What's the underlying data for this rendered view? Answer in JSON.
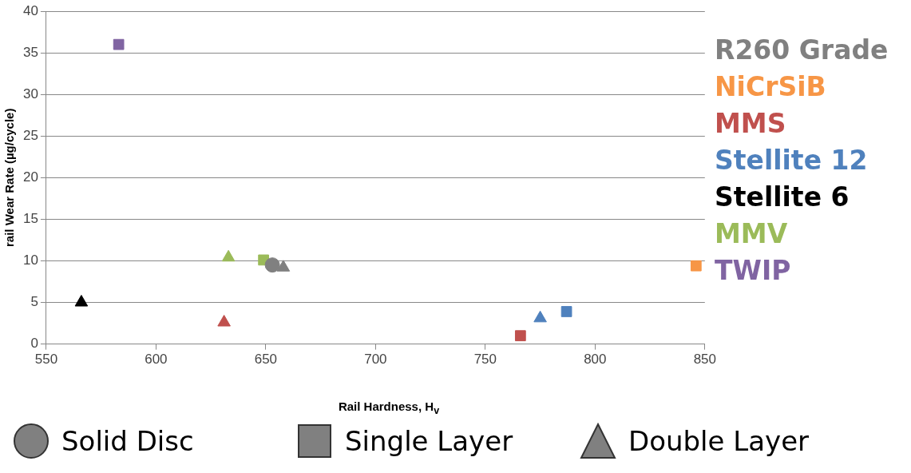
{
  "chart_data": {
    "type": "scatter",
    "xlabel": "Rail Hardness, H$_{v}$",
    "ylabel": "rail Wear Rate (µg/cycle)",
    "xlim": [
      550,
      850
    ],
    "xticks": [
      550,
      600,
      650,
      700,
      750,
      800,
      850
    ],
    "ylim": [
      0,
      40
    ],
    "yticks": [
      0,
      5,
      10,
      15,
      20,
      25,
      30,
      35,
      40
    ],
    "grid": "y",
    "legend": "right",
    "series": [
      {
        "name": "R260 Grade",
        "color": "#808080",
        "marker": "circle",
        "x": [
          653
        ],
        "values": [
          9.5
        ]
      },
      {
        "name": "NiCrSiB",
        "color": "#f79646",
        "marker": "square",
        "x": [
          846
        ],
        "values": [
          9.4
        ]
      },
      {
        "name": "MMS",
        "color": "#c0504d",
        "marker": "triangle",
        "x": [
          631
        ],
        "values": [
          2.6
        ]
      },
      {
        "name": "Stellite 12",
        "color": "#4f81bd",
        "marker": "triangle",
        "x": [
          775
        ],
        "values": [
          3.1
        ]
      },
      {
        "name": "Stellite 6",
        "color": "#000000",
        "marker": "triangle",
        "x": [
          566
        ],
        "values": [
          5
        ]
      },
      {
        "name": "MMV",
        "color": "#9bbb59",
        "marker": "triangle",
        "x": [
          633
        ],
        "values": [
          10.4
        ]
      },
      {
        "name": "TWIP",
        "color": "#8064a2",
        "marker": "square",
        "x": [
          583
        ],
        "values": [
          36
        ]
      },
      {
        "color": "#808080",
        "marker": "triangle",
        "x": [
          658
        ],
        "values": [
          9.2
        ]
      },
      {
        "color": "#c0504d",
        "marker": "square",
        "x": [
          766
        ],
        "values": [
          1
        ]
      },
      {
        "color": "#4f81bd",
        "marker": "square",
        "x": [
          787
        ],
        "values": [
          3.9
        ]
      },
      {
        "color": "#9bbb59",
        "marker": "square",
        "x": [
          649
        ],
        "values": [
          10.1
        ]
      }
    ],
    "annotations": [
      "Solid Disc",
      "Single Layer",
      "Double Layer"
    ]
  }
}
